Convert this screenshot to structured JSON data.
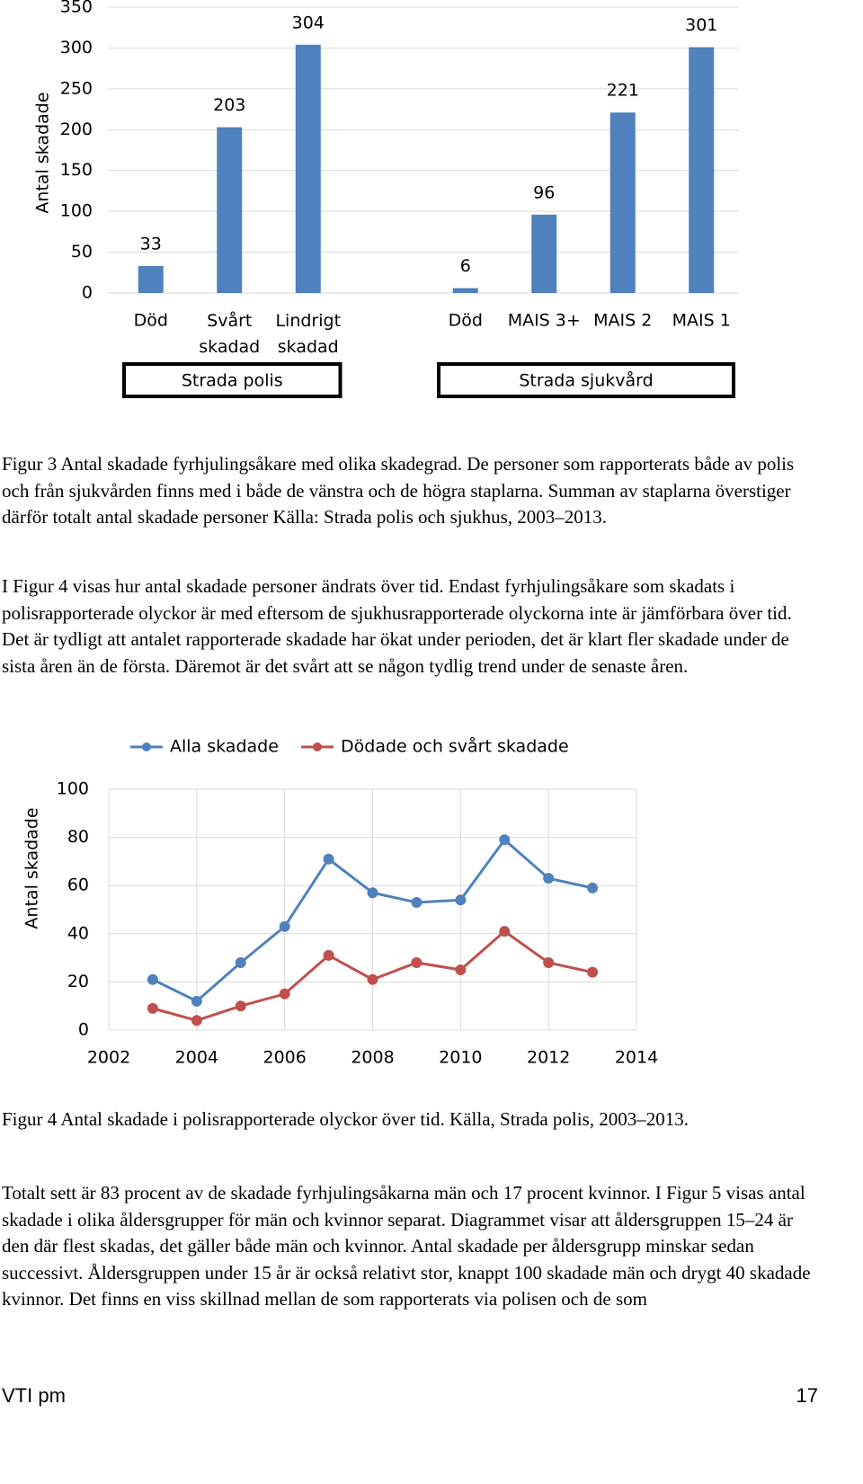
{
  "chart_data": [
    {
      "type": "bar",
      "ylabel": "Antal skadade",
      "color": "#4f81bd",
      "ylim": [
        0,
        350
      ],
      "yticks": [
        0,
        50,
        100,
        150,
        200,
        250,
        300,
        350
      ],
      "grid": true,
      "groups": [
        {
          "name": "Strada polis",
          "categories": [
            "Död",
            "Svårt skadad",
            "Lindrigt skadad"
          ],
          "values": [
            33,
            203,
            304
          ]
        },
        {
          "name": "Strada sjukvård",
          "categories": [
            "Död",
            "MAIS 3+",
            "MAIS 2",
            "MAIS 1"
          ],
          "values": [
            6,
            96,
            221,
            301
          ]
        }
      ]
    },
    {
      "type": "line",
      "ylabel": "Antal skadade",
      "xlim": [
        2002,
        2014
      ],
      "xticks": [
        2002,
        2004,
        2006,
        2008,
        2010,
        2012,
        2014
      ],
      "ylim": [
        0,
        100
      ],
      "yticks": [
        0,
        20,
        40,
        60,
        80,
        100
      ],
      "grid": true,
      "legend": "top",
      "x": [
        2003,
        2004,
        2005,
        2006,
        2007,
        2008,
        2009,
        2010,
        2011,
        2012,
        2013
      ],
      "series": [
        {
          "name": "Alla skadade",
          "color": "#4f81bd",
          "values": [
            21,
            12,
            28,
            43,
            71,
            57,
            53,
            54,
            79,
            63,
            59
          ]
        },
        {
          "name": "Dödade och svårt skadade",
          "color": "#c0504d",
          "values": [
            9,
            4,
            10,
            15,
            31,
            21,
            28,
            25,
            41,
            28,
            24
          ]
        }
      ]
    }
  ],
  "captions": [
    "Figur 3 Antal skadade fyrhjulingsåkare med olika skadegrad. De personer som rapporterats både av polis och från sjukvården finns med i både de vänstra och de högra staplarna. Summan av staplarna överstiger därför totalt antal skadade personer Källa: Strada polis och sjukhus, 2003–2013.",
    "Figur 4 Antal skadade i polisrapporterade olyckor över tid. Källa, Strada polis, 2003–2013."
  ],
  "paragraphs": [
    "I Figur 4 visas hur antal skadade personer ändrats över tid. Endast fyrhjulingsåkare som skadats i polisrapporterade olyckor är med eftersom de sjukhusrapporterade olyckorna inte är jämförbara över tid. Det är tydligt att antalet rapporterade skadade har ökat under perioden, det är klart fler skadade under de sista åren än de första. Däremot är det svårt att se någon tydlig trend under de senaste åren.",
    "Totalt sett är 83 procent av de skadade fyrhjulingsåkarna män och 17 procent kvinnor. I Figur 5 visas antal skadade i olika åldersgrupper för män och kvinnor separat. Diagrammet visar att åldersgruppen 15–24 är den där flest skadas, det gäller både män och kvinnor. Antal skadade per åldersgrupp minskar sedan successivt. Åldersgruppen under 15 år är också relativt stor, knappt 100 skadade män och drygt 40 skadade kvinnor. Det finns en viss skillnad mellan de som rapporterats via polisen och de som"
  ],
  "footer": {
    "left": "VTI pm",
    "right": "17"
  }
}
